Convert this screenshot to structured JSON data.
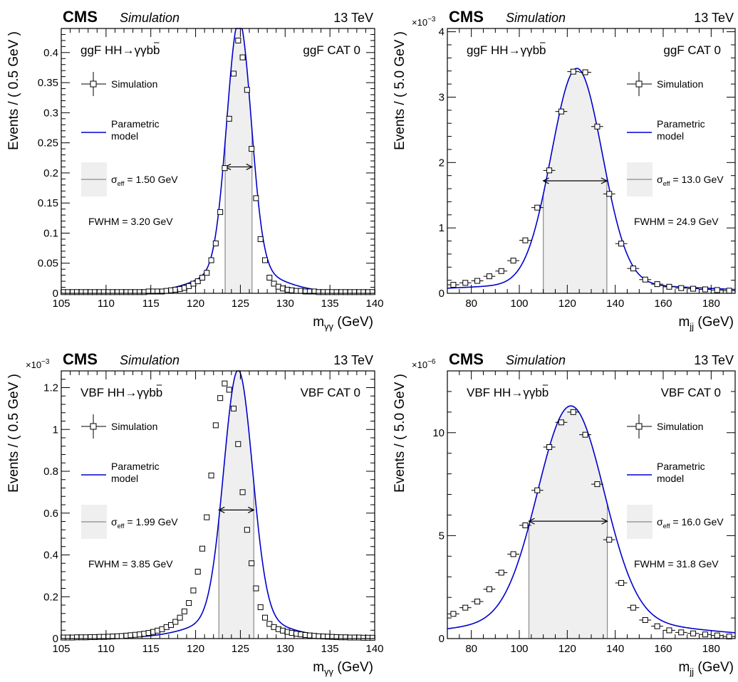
{
  "chart_data": [
    {
      "type": "scatter",
      "experiment": "CMS",
      "label": "Simulation",
      "energy": "13 TeV",
      "process": "ggF HH→γγb",
      "process_bbar": "b",
      "category": "ggF CAT 0",
      "xlabel_main": "m",
      "xlabel_sub": "γγ",
      "xlabel_unit": " (GeV)",
      "ylabel": "Events / ( 0.5 GeV )",
      "exponent_base": "",
      "exponent_power": "",
      "xlim": [
        105,
        140
      ],
      "ylim": [
        0,
        0.44
      ],
      "xticks": [
        105,
        110,
        115,
        120,
        125,
        130,
        135,
        140
      ],
      "yticks": [
        0,
        0.05,
        0.1,
        0.15,
        0.2,
        0.25,
        0.3,
        0.35,
        0.4
      ],
      "ytick_labels": [
        "0",
        "0.05",
        "0.1",
        "0.15",
        "0.2",
        "0.25",
        "0.3",
        "0.35",
        "0.4"
      ],
      "legend": {
        "points": "Simulation",
        "model_line1": "Parametric",
        "model_line2": "model",
        "sigma_symbol": "σ",
        "sigma_sub": "eff",
        "sigma_value": " = 1.50 GeV",
        "fwhm": "FWHM = 3.20 GeV"
      },
      "bin_width": 0.5,
      "x": [
        105.25,
        105.75,
        106.25,
        106.75,
        107.25,
        107.75,
        108.25,
        108.75,
        109.25,
        109.75,
        110.25,
        110.75,
        111.25,
        111.75,
        112.25,
        112.75,
        113.25,
        113.75,
        114.25,
        114.75,
        115.25,
        115.75,
        116.25,
        116.75,
        117.25,
        117.75,
        118.25,
        118.75,
        119.25,
        119.75,
        120.25,
        120.75,
        121.25,
        121.75,
        122.25,
        122.75,
        123.25,
        123.75,
        124.25,
        124.75,
        125.25,
        125.75,
        126.25,
        126.75,
        127.25,
        127.75,
        128.25,
        128.75,
        129.25,
        129.75,
        130.25,
        130.75,
        131.25,
        131.75,
        132.25,
        132.75,
        133.25,
        133.75,
        134.25,
        134.75,
        135.25,
        135.75,
        136.25,
        136.75,
        137.25,
        137.75,
        138.25,
        138.75,
        139.25,
        139.75
      ],
      "values": [
        0.002,
        0.002,
        0.002,
        0.002,
        0.002,
        0.002,
        0.002,
        0.002,
        0.002,
        0.002,
        0.002,
        0.002,
        0.002,
        0.002,
        0.002,
        0.002,
        0.002,
        0.002,
        0.002,
        0.003,
        0.003,
        0.003,
        0.003,
        0.004,
        0.005,
        0.006,
        0.007,
        0.009,
        0.012,
        0.016,
        0.02,
        0.026,
        0.034,
        0.055,
        0.083,
        0.135,
        0.208,
        0.29,
        0.365,
        0.42,
        0.392,
        0.338,
        0.24,
        0.158,
        0.09,
        0.055,
        0.026,
        0.016,
        0.011,
        0.008,
        0.006,
        0.005,
        0.004,
        0.004,
        0.003,
        0.003,
        0.003,
        0.002,
        0.002,
        0.002,
        0.002,
        0.002,
        0.002,
        0.002,
        0.002,
        0.002,
        0.002,
        0.002,
        0.002,
        0.002
      ],
      "model": {
        "mean": 124.85,
        "sigma": 1.35,
        "amplitude": 0.412,
        "tail_amplitude": 0.04,
        "tail_sigma": 4.0,
        "baseline": 0.002
      },
      "sigma_eff_range": [
        123.3,
        126.3
      ],
      "fwhm_arrow_y": 0.21
    },
    {
      "type": "scatter",
      "experiment": "CMS",
      "label": "Simulation",
      "energy": "13 TeV",
      "process": "ggF HH→γγb",
      "process_bbar": "b",
      "category": "ggF CAT 0",
      "xlabel_main": "m",
      "xlabel_sub": "jj",
      "xlabel_unit": " (GeV)",
      "ylabel": "Events / ( 5.0 GeV )",
      "exponent_base": "×10",
      "exponent_power": "−3",
      "xlim": [
        70,
        190
      ],
      "ylim": [
        0,
        4.05
      ],
      "xticks": [
        80,
        100,
        120,
        140,
        160,
        180
      ],
      "yticks": [
        0,
        1,
        2,
        3,
        4
      ],
      "ytick_labels": [
        "0",
        "1",
        "2",
        "3",
        "4"
      ],
      "legend": {
        "points": "Simulation",
        "model_line1": "Parametric",
        "model_line2": "model",
        "sigma_symbol": "σ",
        "sigma_sub": "eff",
        "sigma_value": " = 13.0 GeV",
        "fwhm": "FWHM = 24.9 GeV"
      },
      "bin_width": 5,
      "x": [
        72.5,
        77.5,
        82.5,
        87.5,
        92.5,
        97.5,
        102.5,
        107.5,
        112.5,
        117.5,
        122.5,
        127.5,
        132.5,
        137.5,
        142.5,
        147.5,
        152.5,
        157.5,
        162.5,
        167.5,
        172.5,
        177.5,
        182.5,
        187.5
      ],
      "values": [
        0.13,
        0.16,
        0.19,
        0.26,
        0.34,
        0.5,
        0.81,
        1.31,
        1.88,
        2.78,
        3.39,
        3.38,
        2.55,
        1.52,
        0.76,
        0.38,
        0.21,
        0.14,
        0.1,
        0.08,
        0.07,
        0.06,
        0.05,
        0.04
      ],
      "model": {
        "mean": 124.0,
        "sigma": 10.6,
        "amplitude": 3.3,
        "tail_amplitude": 0.14,
        "tail_sigma": 50,
        "baseline": 0.0
      },
      "sigma_eff_range": [
        110.0,
        136.5
      ],
      "fwhm_arrow_y": 1.72
    },
    {
      "type": "scatter",
      "experiment": "CMS",
      "label": "Simulation",
      "energy": "13 TeV",
      "process": "VBF HH→γγb",
      "process_bbar": "b",
      "category": "VBF CAT 0",
      "xlabel_main": "m",
      "xlabel_sub": "γγ",
      "xlabel_unit": " (GeV)",
      "ylabel": "Events / ( 0.5 GeV )",
      "exponent_base": "×10",
      "exponent_power": "−3",
      "xlim": [
        105,
        140
      ],
      "ylim": [
        0,
        1.28
      ],
      "xticks": [
        105,
        110,
        115,
        120,
        125,
        130,
        135,
        140
      ],
      "yticks": [
        0,
        0.2,
        0.4,
        0.6,
        0.8,
        1.0,
        1.2
      ],
      "ytick_labels": [
        "0",
        "0.2",
        "0.4",
        "0.6",
        "0.8",
        "1",
        "1.2"
      ],
      "legend": {
        "points": "Simulation",
        "model_line1": "Parametric",
        "model_line2": "model",
        "sigma_symbol": "σ",
        "sigma_sub": "eff",
        "sigma_value": " = 1.99 GeV",
        "fwhm": "FWHM = 3.85 GeV"
      },
      "bin_width": 0.5,
      "x": [
        105.25,
        105.75,
        106.25,
        106.75,
        107.25,
        107.75,
        108.25,
        108.75,
        109.25,
        109.75,
        110.25,
        110.75,
        111.25,
        111.75,
        112.25,
        112.75,
        113.25,
        113.75,
        114.25,
        114.75,
        115.25,
        115.75,
        116.25,
        116.75,
        117.25,
        117.75,
        118.25,
        118.75,
        119.25,
        119.75,
        120.25,
        120.75,
        121.25,
        121.75,
        122.25,
        122.75,
        123.25,
        123.75,
        124.25,
        124.75,
        125.25,
        125.75,
        126.25,
        126.75,
        127.25,
        127.75,
        128.25,
        128.75,
        129.25,
        129.75,
        130.25,
        130.75,
        131.25,
        131.75,
        132.25,
        132.75,
        133.25,
        133.75,
        134.25,
        134.75,
        135.25,
        135.75,
        136.25,
        136.75,
        137.25,
        137.75,
        138.25,
        138.75,
        139.25,
        139.75
      ],
      "values": [
        0.005,
        0.005,
        0.005,
        0.006,
        0.006,
        0.006,
        0.007,
        0.007,
        0.008,
        0.008,
        0.009,
        0.01,
        0.011,
        0.012,
        0.014,
        0.016,
        0.018,
        0.02,
        0.023,
        0.027,
        0.032,
        0.038,
        0.045,
        0.055,
        0.065,
        0.08,
        0.1,
        0.13,
        0.17,
        0.23,
        0.32,
        0.43,
        0.58,
        0.78,
        1.02,
        1.15,
        1.22,
        1.19,
        1.1,
        0.93,
        0.7,
        0.52,
        0.36,
        0.24,
        0.15,
        0.1,
        0.07,
        0.055,
        0.045,
        0.038,
        0.032,
        0.027,
        0.023,
        0.02,
        0.017,
        0.015,
        0.013,
        0.011,
        0.01,
        0.009,
        0.008,
        0.007,
        0.006,
        0.006,
        0.005,
        0.005,
        0.005,
        0.004,
        0.004,
        0.004
      ],
      "model": {
        "mean": 124.75,
        "sigma": 1.6,
        "amplitude": 1.18,
        "tail_amplitude": 0.1,
        "tail_sigma": 4.5,
        "baseline": 0.004
      },
      "sigma_eff_range": [
        122.6,
        126.5
      ],
      "fwhm_arrow_y": 0.615
    },
    {
      "type": "scatter",
      "experiment": "CMS",
      "label": "Simulation",
      "energy": "13 TeV",
      "process": "VBF HH→γγb",
      "process_bbar": "b",
      "category": "VBF CAT 0",
      "xlabel_main": "m",
      "xlabel_sub": "jj",
      "xlabel_unit": " (GeV)",
      "ylabel": "Events / ( 5.0 GeV )",
      "exponent_base": "×10",
      "exponent_power": "−6",
      "xlim": [
        70,
        190
      ],
      "ylim": [
        0,
        13.0
      ],
      "xticks": [
        80,
        100,
        120,
        140,
        160,
        180
      ],
      "yticks": [
        0,
        5,
        10
      ],
      "ytick_labels": [
        "0",
        "5",
        "10"
      ],
      "legend": {
        "points": "Simulation",
        "model_line1": "Parametric",
        "model_line2": "model",
        "sigma_symbol": "σ",
        "sigma_sub": "eff",
        "sigma_value": " = 16.0 GeV",
        "fwhm": "FWHM = 31.8 GeV"
      },
      "bin_width": 5,
      "x": [
        72.5,
        77.5,
        82.5,
        87.5,
        92.5,
        97.5,
        102.5,
        107.5,
        112.5,
        117.5,
        122.5,
        127.5,
        132.5,
        137.5,
        142.5,
        147.5,
        152.5,
        157.5,
        162.5,
        167.5,
        172.5,
        177.5,
        182.5,
        187.5
      ],
      "values": [
        1.2,
        1.5,
        1.8,
        2.4,
        3.2,
        4.1,
        5.5,
        7.2,
        9.3,
        10.5,
        11.0,
        9.9,
        7.5,
        4.8,
        2.7,
        1.5,
        0.9,
        0.6,
        0.4,
        0.3,
        0.25,
        0.2,
        0.15,
        0.1
      ],
      "model": {
        "mean": 121.5,
        "sigma": 13.8,
        "amplitude": 10.4,
        "tail_amplitude": 0.9,
        "tail_sigma": 45,
        "baseline": 0.0
      },
      "sigma_eff_range": [
        104.0,
        136.7
      ],
      "fwhm_arrow_y": 5.7
    }
  ]
}
